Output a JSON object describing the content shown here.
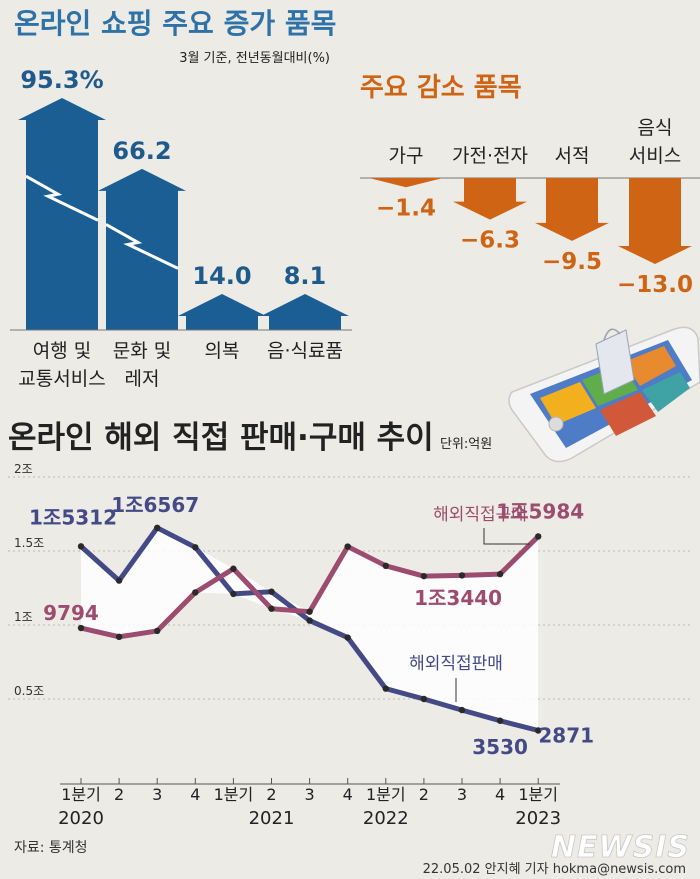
{
  "colors": {
    "increase": "#1a5e93",
    "decrease": "#cf6414",
    "title_blue": "#2e72a8",
    "sales": "#434a86",
    "purchase": "#9c4c6e",
    "band": "#ffffff",
    "text": "#222222",
    "grid": "#aaaaaa"
  },
  "increase_chart": {
    "title": "온라인 쇼핑 주요 증가 품목",
    "note": "3월 기준, 전년동월대비(%)",
    "type": "bar",
    "items": [
      {
        "label_lines": [
          "여행 및",
          "교통서비스"
        ],
        "value": 95.3,
        "value_text": "95.3%"
      },
      {
        "label_lines": [
          "문화 및",
          "레저"
        ],
        "value": 66.2,
        "value_text": "66.2"
      },
      {
        "label_lines": [
          "의복"
        ],
        "value": 14.0,
        "value_text": "14.0"
      },
      {
        "label_lines": [
          "음·식료품"
        ],
        "value": 8.1,
        "value_text": "8.1"
      }
    ]
  },
  "decrease_chart": {
    "title": "주요 감소 품목",
    "type": "bar",
    "items": [
      {
        "label_lines": [
          "가구"
        ],
        "value": -1.4,
        "value_text": "−1.4"
      },
      {
        "label_lines": [
          "가전·전자"
        ],
        "value": -6.3,
        "value_text": "−6.3"
      },
      {
        "label_lines": [
          "서적"
        ],
        "value": -9.5,
        "value_text": "−9.5"
      },
      {
        "label_lines": [
          "음식",
          "서비스"
        ],
        "value": -13.0,
        "value_text": "−13.0"
      }
    ]
  },
  "chart_data": {
    "type": "line",
    "title": "온라인 해외 직접 판매·구매 추이",
    "unit": "단위:억원",
    "categories": [
      "1분기",
      "2",
      "3",
      "4",
      "1분기",
      "2",
      "3",
      "4",
      "1분기",
      "2",
      "3",
      "4",
      "1분기"
    ],
    "years": [
      {
        "label": "2020",
        "index": 0
      },
      {
        "label": "2021",
        "index": 5
      },
      {
        "label": "2022",
        "index": 8
      },
      {
        "label": "2023",
        "index": 12
      }
    ],
    "yticks": [
      {
        "value": 20000,
        "label": "2조"
      },
      {
        "value": 15000,
        "label": "1.5조"
      },
      {
        "value": 10000,
        "label": "1조"
      },
      {
        "value": 5000,
        "label": "0.5조"
      }
    ],
    "ylim": [
      0,
      20000
    ],
    "series": [
      {
        "name": "해외직접판매",
        "values": [
          15312,
          13000,
          16567,
          15250,
          12100,
          12250,
          10300,
          9150,
          5700,
          5000,
          4250,
          3530,
          2871
        ],
        "labels": [
          {
            "index": 0,
            "text": "1조5312"
          },
          {
            "index": 2,
            "text": "1조6567"
          },
          {
            "index": 11,
            "text": "3530"
          },
          {
            "index": 12,
            "text": "2871"
          }
        ]
      },
      {
        "name": "해외직접구매",
        "values": [
          9794,
          9200,
          9600,
          12200,
          13800,
          11100,
          10900,
          15300,
          14000,
          13300,
          13350,
          13440,
          15984
        ],
        "labels": [
          {
            "index": 0,
            "text": "9794"
          },
          {
            "index": 11,
            "text": "1조3440"
          },
          {
            "index": 12,
            "text": "1조5984"
          }
        ]
      }
    ]
  },
  "footer": {
    "source": "자료: 통계청",
    "credit": "22.05.02 안지혜 기자 hokma@newsis.com",
    "logo": "NEWSIS"
  }
}
